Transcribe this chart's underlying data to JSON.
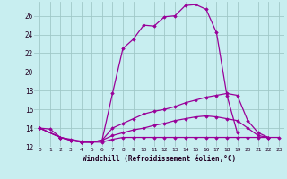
{
  "xlabel": "Windchill (Refroidissement éolien,°C)",
  "bg_color": "#c8eef0",
  "grid_color": "#a0c8c8",
  "line_color": "#990099",
  "xlim": [
    -0.5,
    23.5
  ],
  "ylim": [
    12,
    27.5
  ],
  "yticks": [
    12,
    14,
    16,
    18,
    20,
    22,
    24,
    26
  ],
  "xticks": [
    0,
    1,
    2,
    3,
    4,
    5,
    6,
    7,
    8,
    9,
    10,
    11,
    12,
    13,
    14,
    15,
    16,
    17,
    18,
    19,
    20,
    21,
    22,
    23
  ],
  "lines": [
    {
      "x": [
        0,
        1,
        2,
        3,
        4,
        5,
        6,
        7,
        8,
        9,
        10,
        11,
        12,
        13,
        14,
        15,
        16,
        17,
        18,
        19
      ],
      "y": [
        14.0,
        13.9,
        13.0,
        12.7,
        12.5,
        12.5,
        12.7,
        17.7,
        22.5,
        23.5,
        25.0,
        24.9,
        25.9,
        26.0,
        27.1,
        27.2,
        26.7,
        24.2,
        17.5,
        13.5
      ]
    },
    {
      "x": [
        0,
        2,
        3,
        4,
        5,
        6,
        7,
        8,
        9,
        10,
        11,
        12,
        13,
        14,
        15,
        16,
        17,
        18,
        19,
        20,
        21,
        22
      ],
      "y": [
        14.0,
        13.0,
        12.7,
        12.5,
        12.5,
        12.7,
        14.0,
        14.5,
        15.0,
        15.5,
        15.8,
        16.0,
        16.3,
        16.7,
        17.0,
        17.3,
        17.5,
        17.7,
        17.5,
        14.8,
        13.5,
        13.0
      ]
    },
    {
      "x": [
        0,
        2,
        3,
        4,
        5,
        6,
        7,
        8,
        9,
        10,
        11,
        12,
        13,
        14,
        15,
        16,
        17,
        18,
        19,
        20,
        21,
        22
      ],
      "y": [
        14.0,
        13.0,
        12.7,
        12.5,
        12.5,
        12.7,
        13.2,
        13.5,
        13.8,
        14.0,
        14.3,
        14.5,
        14.8,
        15.0,
        15.2,
        15.3,
        15.2,
        15.0,
        14.8,
        14.0,
        13.2,
        13.0
      ]
    },
    {
      "x": [
        0,
        2,
        3,
        4,
        5,
        6,
        7,
        8,
        9,
        10,
        11,
        12,
        13,
        14,
        15,
        16,
        17,
        18,
        19,
        20,
        21,
        22,
        23
      ],
      "y": [
        14.0,
        13.0,
        12.8,
        12.6,
        12.5,
        12.5,
        12.8,
        13.0,
        13.0,
        13.0,
        13.0,
        13.0,
        13.0,
        13.0,
        13.0,
        13.0,
        13.0,
        13.0,
        13.0,
        13.0,
        13.0,
        13.0,
        13.0
      ]
    }
  ]
}
